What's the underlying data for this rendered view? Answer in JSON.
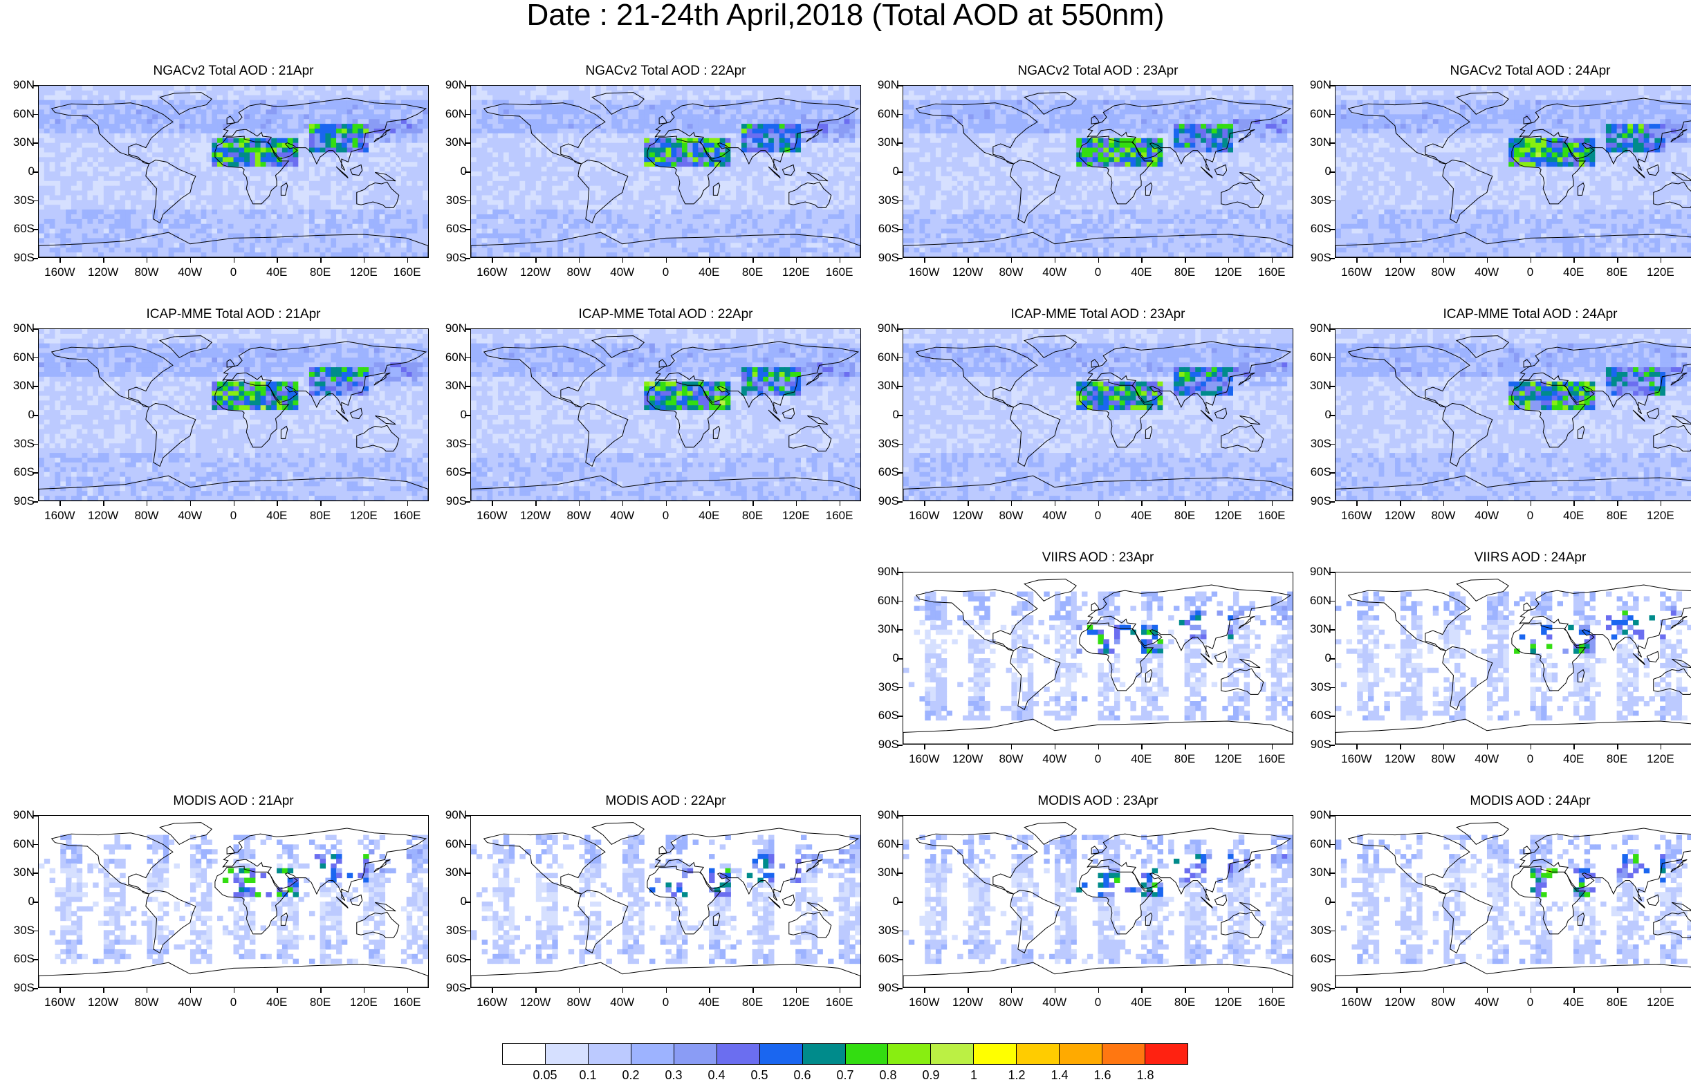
{
  "title": "Date : 21-24th April,2018 (Total AOD at 550nm)",
  "axis": {
    "y_labels": [
      "90N",
      "60N",
      "30N",
      "0",
      "30S",
      "60S",
      "90S"
    ],
    "x_labels": [
      "160W",
      "120W",
      "80W",
      "40W",
      "0",
      "40E",
      "80E",
      "120E",
      "160E"
    ],
    "x_values": [
      -160,
      -120,
      -80,
      -40,
      0,
      40,
      80,
      120,
      160
    ]
  },
  "panels": [
    {
      "title": "NGACv2 Total AOD : 21Apr",
      "row": 0,
      "col": 0,
      "kind": "model"
    },
    {
      "title": "NGACv2 Total AOD : 22Apr",
      "row": 0,
      "col": 1,
      "kind": "model"
    },
    {
      "title": "NGACv2 Total AOD : 23Apr",
      "row": 0,
      "col": 2,
      "kind": "model"
    },
    {
      "title": "NGACv2 Total AOD : 24Apr",
      "row": 0,
      "col": 3,
      "kind": "model"
    },
    {
      "title": "ICAP-MME Total AOD : 21Apr",
      "row": 1,
      "col": 0,
      "kind": "model"
    },
    {
      "title": "ICAP-MME Total AOD : 22Apr",
      "row": 1,
      "col": 1,
      "kind": "model"
    },
    {
      "title": "ICAP-MME Total AOD : 23Apr",
      "row": 1,
      "col": 2,
      "kind": "model"
    },
    {
      "title": "ICAP-MME Total AOD : 24Apr",
      "row": 1,
      "col": 3,
      "kind": "model"
    },
    {
      "title": "VIIRS AOD : 23Apr",
      "row": 2,
      "col": 2,
      "kind": "satellite"
    },
    {
      "title": "VIIRS AOD : 24Apr",
      "row": 2,
      "col": 3,
      "kind": "satellite"
    },
    {
      "title": "MODIS AOD : 21Apr",
      "row": 3,
      "col": 0,
      "kind": "satellite"
    },
    {
      "title": "MODIS AOD : 22Apr",
      "row": 3,
      "col": 1,
      "kind": "satellite"
    },
    {
      "title": "MODIS AOD : 23Apr",
      "row": 3,
      "col": 2,
      "kind": "satellite"
    },
    {
      "title": "MODIS AOD : 24Apr",
      "row": 3,
      "col": 3,
      "kind": "satellite"
    }
  ],
  "colorbar": {
    "colors": [
      "#ffffff",
      "#d6e0ff",
      "#bccaff",
      "#9db3ff",
      "#8a9cf5",
      "#6b6ef0",
      "#1a66f0",
      "#008b8b",
      "#33dd11",
      "#88ee11",
      "#bbf044",
      "#ffff00",
      "#ffcc00",
      "#ffaa00",
      "#ff7711",
      "#ff2211"
    ],
    "labels": [
      "0.05",
      "0.1",
      "0.2",
      "0.3",
      "0.4",
      "0.5",
      "0.6",
      "0.7",
      "0.8",
      "0.9",
      "1",
      "1.2",
      "1.4",
      "1.6",
      "1.8"
    ]
  }
}
